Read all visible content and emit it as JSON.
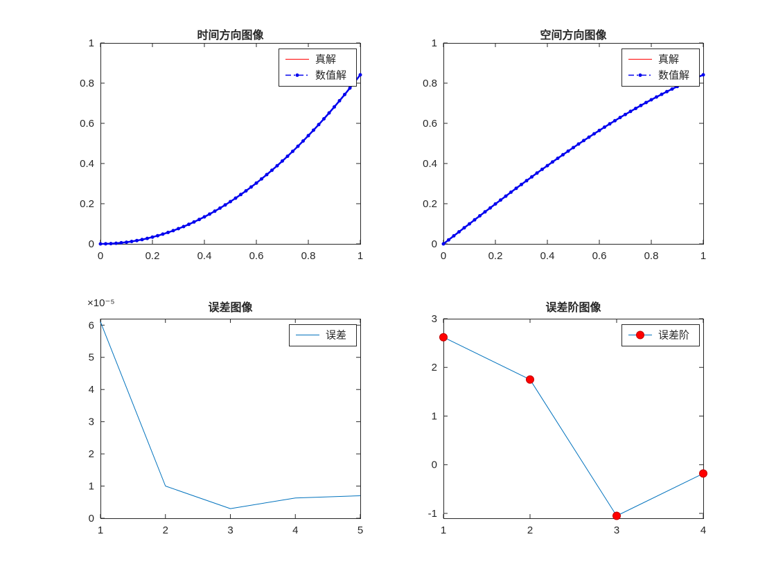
{
  "figure": {
    "background": "#ffffff",
    "axis_color": "#262626",
    "text_color": "#262626",
    "font_size_ticks": 15,
    "font_size_title": 16
  },
  "chart_data": [
    {
      "id": "time-direction",
      "type": "line",
      "title": "时间方向图像",
      "xlabel": "",
      "ylabel": "",
      "xlim": [
        0,
        1
      ],
      "ylim": [
        0,
        1
      ],
      "xticks": [
        0,
        0.2,
        0.4,
        0.6,
        0.8,
        1
      ],
      "yticks": [
        0,
        0.2,
        0.4,
        0.6,
        0.8,
        1
      ],
      "grid": false,
      "legend": {
        "position": "top-right",
        "entries": [
          "真解",
          "数值解"
        ]
      },
      "series": [
        {
          "name": "真解",
          "color": "#ff0000",
          "line_style": "solid",
          "line_width": 1,
          "marker": "none",
          "x": [
            0,
            0.05,
            0.1,
            0.15,
            0.2,
            0.25,
            0.3,
            0.35,
            0.4,
            0.45,
            0.5,
            0.55,
            0.6,
            0.65,
            0.7,
            0.75,
            0.8,
            0.85,
            0.9,
            0.95,
            1
          ],
          "y": [
            0,
            0.0021,
            0.0084,
            0.0189,
            0.0337,
            0.0526,
            0.0757,
            0.1031,
            0.1346,
            0.1704,
            0.2104,
            0.2546,
            0.3029,
            0.3555,
            0.4123,
            0.4733,
            0.5386,
            0.608,
            0.6816,
            0.7595,
            0.8415
          ]
        },
        {
          "name": "数值解",
          "color": "#0000ee",
          "line_style": "solid",
          "legend_line_style": "dashdot",
          "line_width": 2.5,
          "legend_line_width": 1.5,
          "marker": "dot",
          "marker_size": 2.5,
          "marker_color": "#0000ee",
          "x": [
            0,
            0.02,
            0.04,
            0.06,
            0.08,
            0.1,
            0.12,
            0.14,
            0.16,
            0.18,
            0.2,
            0.22,
            0.24,
            0.26,
            0.28,
            0.3,
            0.32,
            0.34,
            0.36,
            0.38,
            0.4,
            0.42,
            0.44,
            0.46,
            0.48,
            0.5,
            0.52,
            0.54,
            0.56,
            0.58,
            0.6,
            0.62,
            0.64,
            0.66,
            0.68,
            0.7,
            0.72,
            0.74,
            0.76,
            0.78,
            0.8,
            0.82,
            0.84,
            0.86,
            0.88,
            0.9,
            0.92,
            0.94,
            0.96,
            0.98,
            1
          ],
          "y": [
            0,
            0.0003,
            0.0013,
            0.003,
            0.0054,
            0.0084,
            0.0121,
            0.0165,
            0.0215,
            0.0273,
            0.0337,
            0.0407,
            0.0485,
            0.0569,
            0.066,
            0.0757,
            0.0862,
            0.0973,
            0.1091,
            0.1215,
            0.1346,
            0.1484,
            0.1629,
            0.1781,
            0.1939,
            0.2104,
            0.2276,
            0.2454,
            0.2639,
            0.2831,
            0.3029,
            0.3235,
            0.3447,
            0.3666,
            0.3891,
            0.4123,
            0.4362,
            0.4608,
            0.486,
            0.512,
            0.5386,
            0.5658,
            0.5938,
            0.6224,
            0.6517,
            0.6816,
            0.7123,
            0.7436,
            0.7755,
            0.8082,
            0.8415
          ]
        }
      ]
    },
    {
      "id": "space-direction",
      "type": "line",
      "title": "空间方向图像",
      "xlabel": "",
      "ylabel": "",
      "xlim": [
        0,
        1
      ],
      "ylim": [
        0,
        1
      ],
      "xticks": [
        0,
        0.2,
        0.4,
        0.6,
        0.8,
        1
      ],
      "yticks": [
        0,
        0.2,
        0.4,
        0.6,
        0.8,
        1
      ],
      "grid": false,
      "legend": {
        "position": "top-right",
        "entries": [
          "真解",
          "数值解"
        ]
      },
      "series": [
        {
          "name": "真解",
          "color": "#ff0000",
          "line_style": "solid",
          "line_width": 1,
          "marker": "none",
          "x": [
            0,
            0.05,
            0.1,
            0.15,
            0.2,
            0.25,
            0.3,
            0.35,
            0.4,
            0.45,
            0.5,
            0.55,
            0.6,
            0.65,
            0.7,
            0.75,
            0.8,
            0.85,
            0.9,
            0.95,
            1
          ],
          "y": [
            0,
            0.05,
            0.0998,
            0.1494,
            0.1987,
            0.2474,
            0.2955,
            0.3429,
            0.3894,
            0.435,
            0.4794,
            0.5227,
            0.5646,
            0.6052,
            0.6442,
            0.6816,
            0.7174,
            0.7513,
            0.7833,
            0.8134,
            0.8415
          ]
        },
        {
          "name": "数值解",
          "color": "#0000ee",
          "line_style": "solid",
          "legend_line_style": "dashdot",
          "line_width": 2.5,
          "legend_line_width": 1.5,
          "marker": "dot",
          "marker_size": 2.5,
          "marker_color": "#0000ee",
          "x": [
            0,
            0.02,
            0.04,
            0.06,
            0.08,
            0.1,
            0.12,
            0.14,
            0.16,
            0.18,
            0.2,
            0.22,
            0.24,
            0.26,
            0.28,
            0.3,
            0.32,
            0.34,
            0.36,
            0.38,
            0.4,
            0.42,
            0.44,
            0.46,
            0.48,
            0.5,
            0.52,
            0.54,
            0.56,
            0.58,
            0.6,
            0.62,
            0.64,
            0.66,
            0.68,
            0.7,
            0.72,
            0.74,
            0.76,
            0.78,
            0.8,
            0.82,
            0.84,
            0.86,
            0.88,
            0.9,
            0.92,
            0.94,
            0.96,
            0.98,
            1
          ],
          "y": [
            0,
            0.02,
            0.04,
            0.06,
            0.0799,
            0.0998,
            0.1197,
            0.1395,
            0.1593,
            0.179,
            0.1987,
            0.2182,
            0.2377,
            0.2571,
            0.2764,
            0.2955,
            0.3146,
            0.3335,
            0.3523,
            0.3709,
            0.3894,
            0.4078,
            0.4259,
            0.4439,
            0.4618,
            0.4794,
            0.4969,
            0.5141,
            0.5312,
            0.548,
            0.5646,
            0.581,
            0.5972,
            0.6131,
            0.6288,
            0.6442,
            0.6594,
            0.6743,
            0.6889,
            0.7033,
            0.7174,
            0.7311,
            0.7446,
            0.7578,
            0.7707,
            0.7833,
            0.7956,
            0.8076,
            0.8192,
            0.8305,
            0.8415
          ]
        }
      ]
    },
    {
      "id": "error",
      "type": "line",
      "title": "误差图像",
      "exponent_label": "×10⁻⁵",
      "y_unit": "1e-5",
      "xlabel": "",
      "ylabel": "",
      "xlim": [
        1,
        5
      ],
      "ylim": [
        0,
        6.2
      ],
      "xticks": [
        1,
        2,
        3,
        4,
        5
      ],
      "yticks": [
        0,
        1,
        2,
        3,
        4,
        5,
        6
      ],
      "grid": false,
      "legend": {
        "position": "top-right",
        "entries": [
          "误差"
        ]
      },
      "series": [
        {
          "name": "误差",
          "color": "#0072BD",
          "line_style": "solid",
          "line_width": 1,
          "marker": "none",
          "x": [
            1,
            2,
            3,
            4,
            5
          ],
          "y": [
            6.1,
            1.0,
            0.3,
            0.63,
            0.7
          ]
        }
      ]
    },
    {
      "id": "error-order",
      "type": "line",
      "title": "误差阶图像",
      "xlabel": "",
      "ylabel": "",
      "xlim": [
        1,
        4
      ],
      "ylim": [
        -1.1,
        3
      ],
      "xticks": [
        1,
        2,
        3,
        4
      ],
      "yticks": [
        -1,
        0,
        1,
        2,
        3
      ],
      "grid": false,
      "legend": {
        "position": "top-right",
        "entries": [
          "误差阶"
        ]
      },
      "series": [
        {
          "name": "误差阶",
          "color": "#0072BD",
          "line_style": "solid",
          "line_width": 1,
          "marker": "circle",
          "marker_size": 5.5,
          "marker_color": "#ff0000",
          "marker_edge": "#c00000",
          "x": [
            1,
            2,
            3,
            4
          ],
          "y": [
            2.62,
            1.75,
            -1.05,
            -0.18
          ]
        }
      ]
    }
  ]
}
